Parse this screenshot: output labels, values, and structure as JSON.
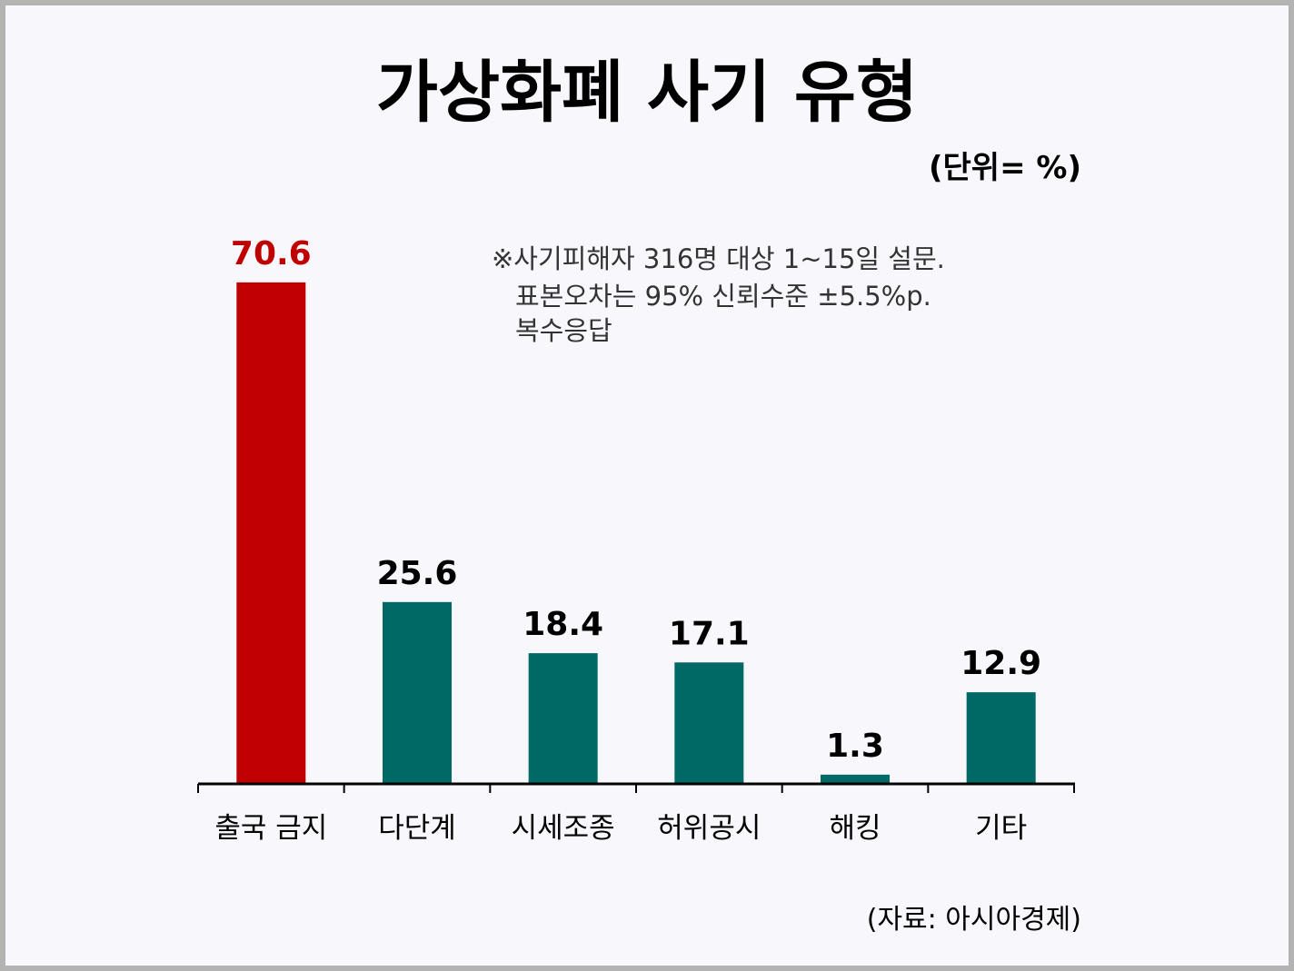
{
  "chart_data": {
    "type": "bar",
    "title": "가상화폐 사기 유형",
    "unit": "(단위= %)",
    "note": [
      "※사기피해자 316명 대상 1~15일 설문.",
      "표본오차는 95% 신뢰수준 ±5.5%p.",
      "복수응답"
    ],
    "source": "(자료: 아시아경제)",
    "categories": [
      "출국 금지",
      "다단계",
      "시세조종",
      "허위공시",
      "해킹",
      "기타"
    ],
    "values": [
      70.6,
      25.6,
      18.4,
      17.1,
      1.3,
      12.9
    ],
    "value_labels": [
      "70.6",
      "25.6",
      "18.4",
      "17.1",
      "1.3",
      "12.9"
    ],
    "ylim": [
      0,
      80
    ],
    "grid": false,
    "colors": {
      "highlight": "#c00000",
      "default": "#006966",
      "highlight_label": "#c00000",
      "default_label": "#000000"
    },
    "highlight_index": 0
  }
}
